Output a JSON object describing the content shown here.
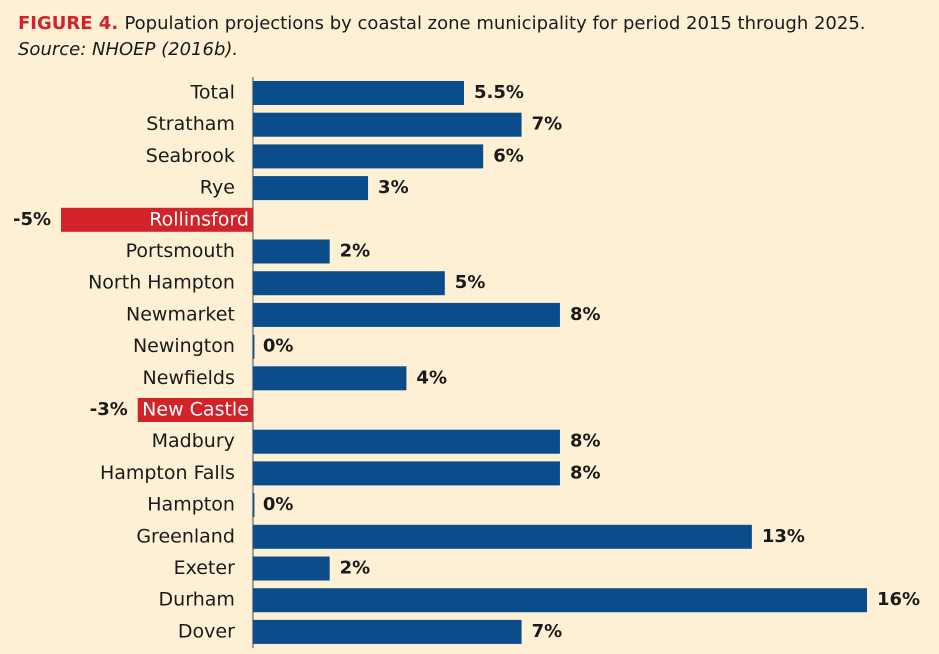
{
  "chart_data": {
    "type": "bar",
    "orientation": "horizontal",
    "figure_label": "FIGURE 4.",
    "title": "Population projections by coastal zone municipality for period 2015 through 2025.",
    "subtitle": "Source: NHOEP (2016b).",
    "categories": [
      "Total",
      "Stratham",
      "Seabrook",
      "Rye",
      "Rollinsford",
      "Portsmouth",
      "North Hampton",
      "Newmarket",
      "Newington",
      "Newfields",
      "New Castle",
      "Madbury",
      "Hampton Falls",
      "Hampton",
      "Greenland",
      "Exeter",
      "Durham",
      "Dover"
    ],
    "values": [
      5.5,
      7,
      6,
      3,
      -5,
      2,
      5,
      8,
      0,
      4,
      -3,
      8,
      8,
      0,
      13,
      2,
      16,
      7
    ],
    "value_labels": [
      "5.5%",
      "7%",
      "6%",
      "3%",
      "-5%",
      "2%",
      "5%",
      "8%",
      "0%",
      "4%",
      "-3%",
      "8%",
      "8%",
      "0%",
      "13%",
      "2%",
      "16%",
      "7%"
    ],
    "color": "#0b4d8b",
    "negative_color": "#d2232a",
    "figure_label_color": "#d2232a",
    "xlim": [
      -5,
      16
    ]
  }
}
